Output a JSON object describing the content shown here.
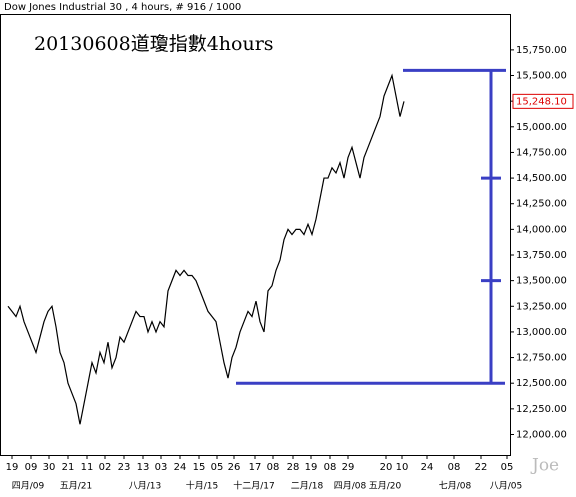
{
  "chart_data": {
    "type": "line",
    "title": "Dow Jones Industrial 30 , 4 hours, # 916 / 1000",
    "annotation": "20130608道瓊指數4hours",
    "watermark": "Joe",
    "x": [
      8,
      12,
      16,
      20,
      24,
      28,
      32,
      36,
      40,
      44,
      48,
      52,
      56,
      60,
      64,
      68,
      72,
      76,
      80,
      84,
      88,
      92,
      96,
      100,
      104,
      108,
      112,
      116,
      120,
      124,
      128,
      132,
      136,
      140,
      144,
      148,
      152,
      156,
      160,
      164,
      168,
      172,
      176,
      180,
      184,
      188,
      192,
      196,
      200,
      204,
      208,
      212,
      216,
      220,
      224,
      228,
      232,
      236,
      240,
      244,
      248,
      252,
      256,
      260,
      264,
      268,
      272,
      276,
      280,
      284,
      288,
      292,
      296,
      300,
      304,
      308,
      312,
      316,
      320,
      324,
      328,
      332,
      336,
      340,
      344,
      348,
      352,
      356,
      360,
      364,
      368,
      372,
      376,
      380,
      384,
      388,
      392,
      396,
      400,
      404
    ],
    "series": [
      {
        "name": "Dow Jones Industrial 30",
        "color": "#000000",
        "values": [
          13250,
          13200,
          13150,
          13250,
          13100,
          13000,
          12900,
          12800,
          12950,
          13100,
          13200,
          13250,
          13050,
          12800,
          12700,
          12500,
          12400,
          12300,
          12100,
          12300,
          12500,
          12700,
          12600,
          12800,
          12700,
          12900,
          12650,
          12750,
          12950,
          12900,
          13000,
          13100,
          13200,
          13150,
          13150,
          13000,
          13100,
          13000,
          13100,
          13050,
          13400,
          13500,
          13600,
          13550,
          13600,
          13550,
          13550,
          13500,
          13400,
          13300,
          13200,
          13150,
          13100,
          12900,
          12700,
          12550,
          12750,
          12850,
          13000,
          13100,
          13200,
          13150,
          13300,
          13100,
          13000,
          13400,
          13450,
          13600,
          13700,
          13900,
          14000,
          13950,
          14000,
          14000,
          13950,
          14050,
          13950,
          14100,
          14300,
          14500,
          14500,
          14600,
          14550,
          14650,
          14500,
          14700,
          14800,
          14650,
          14500,
          14700,
          14800,
          14900,
          15000,
          15100,
          15300,
          15400,
          15500,
          15300,
          15100,
          15248
        ]
      }
    ],
    "last_price": {
      "value": 15248.1,
      "label": "15,248.10"
    },
    "annotation_levels": [
      15550,
      14500,
      13500,
      12500
    ],
    "annotation_color": "#3a3fc4",
    "xlim": [
      0,
      510
    ],
    "xticks": [
      {
        "value": 12,
        "label": "19"
      },
      {
        "value": 31,
        "label": "09"
      },
      {
        "value": 49,
        "label": "30"
      },
      {
        "value": 68,
        "label": "21"
      },
      {
        "value": 87,
        "label": "11"
      },
      {
        "value": 105,
        "label": "02"
      },
      {
        "value": 124,
        "label": "23"
      },
      {
        "value": 143,
        "label": "13"
      },
      {
        "value": 161,
        "label": "03"
      },
      {
        "value": 180,
        "label": "24"
      },
      {
        "value": 199,
        "label": "15"
      },
      {
        "value": 217,
        "label": "05"
      },
      {
        "value": 234,
        "label": "26"
      },
      {
        "value": 255,
        "label": "17"
      },
      {
        "value": 273,
        "label": "08"
      },
      {
        "value": 293,
        "label": "28"
      },
      {
        "value": 311,
        "label": "19"
      },
      {
        "value": 330,
        "label": "08"
      },
      {
        "value": 348,
        "label": "29"
      },
      {
        "value": 386,
        "label": "20"
      },
      {
        "value": 402,
        "label": "10"
      },
      {
        "value": 427,
        "label": "24"
      },
      {
        "value": 454,
        "label": "08"
      },
      {
        "value": 481,
        "label": "22"
      },
      {
        "value": 507,
        "label": "05"
      }
    ],
    "xticks_secondary": [
      {
        "value": 28,
        "label": "四月/09"
      },
      {
        "value": 76,
        "label": "五月/21"
      },
      {
        "value": 145,
        "label": "八月/13"
      },
      {
        "value": 202,
        "label": "十月/15"
      },
      {
        "value": 254,
        "label": "十二月/17"
      },
      {
        "value": 307,
        "label": "二月/18"
      },
      {
        "value": 350,
        "label": "四月/08"
      },
      {
        "value": 385,
        "label": "五月/20"
      },
      {
        "value": 455,
        "label": "七月/08"
      },
      {
        "value": 506,
        "label": "八月/05"
      }
    ],
    "ylim": [
      11800,
      16090
    ],
    "yticks": [
      {
        "value": 12000,
        "label": "12,000.00"
      },
      {
        "value": 12250,
        "label": "12,250.00"
      },
      {
        "value": 12500,
        "label": "12,500.00"
      },
      {
        "value": 12750,
        "label": "12,750.00"
      },
      {
        "value": 13000,
        "label": "13,000.00"
      },
      {
        "value": 13250,
        "label": "13,250.00"
      },
      {
        "value": 13500,
        "label": "13,500.00"
      },
      {
        "value": 13750,
        "label": "13,750.00"
      },
      {
        "value": 14000,
        "label": "14,000.00"
      },
      {
        "value": 14250,
        "label": "14,250.00"
      },
      {
        "value": 14500,
        "label": "14,500.00"
      },
      {
        "value": 14750,
        "label": "14,750.00"
      },
      {
        "value": 15000,
        "label": "15,000.00"
      },
      {
        "value": 15250,
        "label": "15,250.00"
      },
      {
        "value": 15500,
        "label": "15,500.00"
      },
      {
        "value": 15750,
        "label": "15,750.00"
      }
    ]
  }
}
